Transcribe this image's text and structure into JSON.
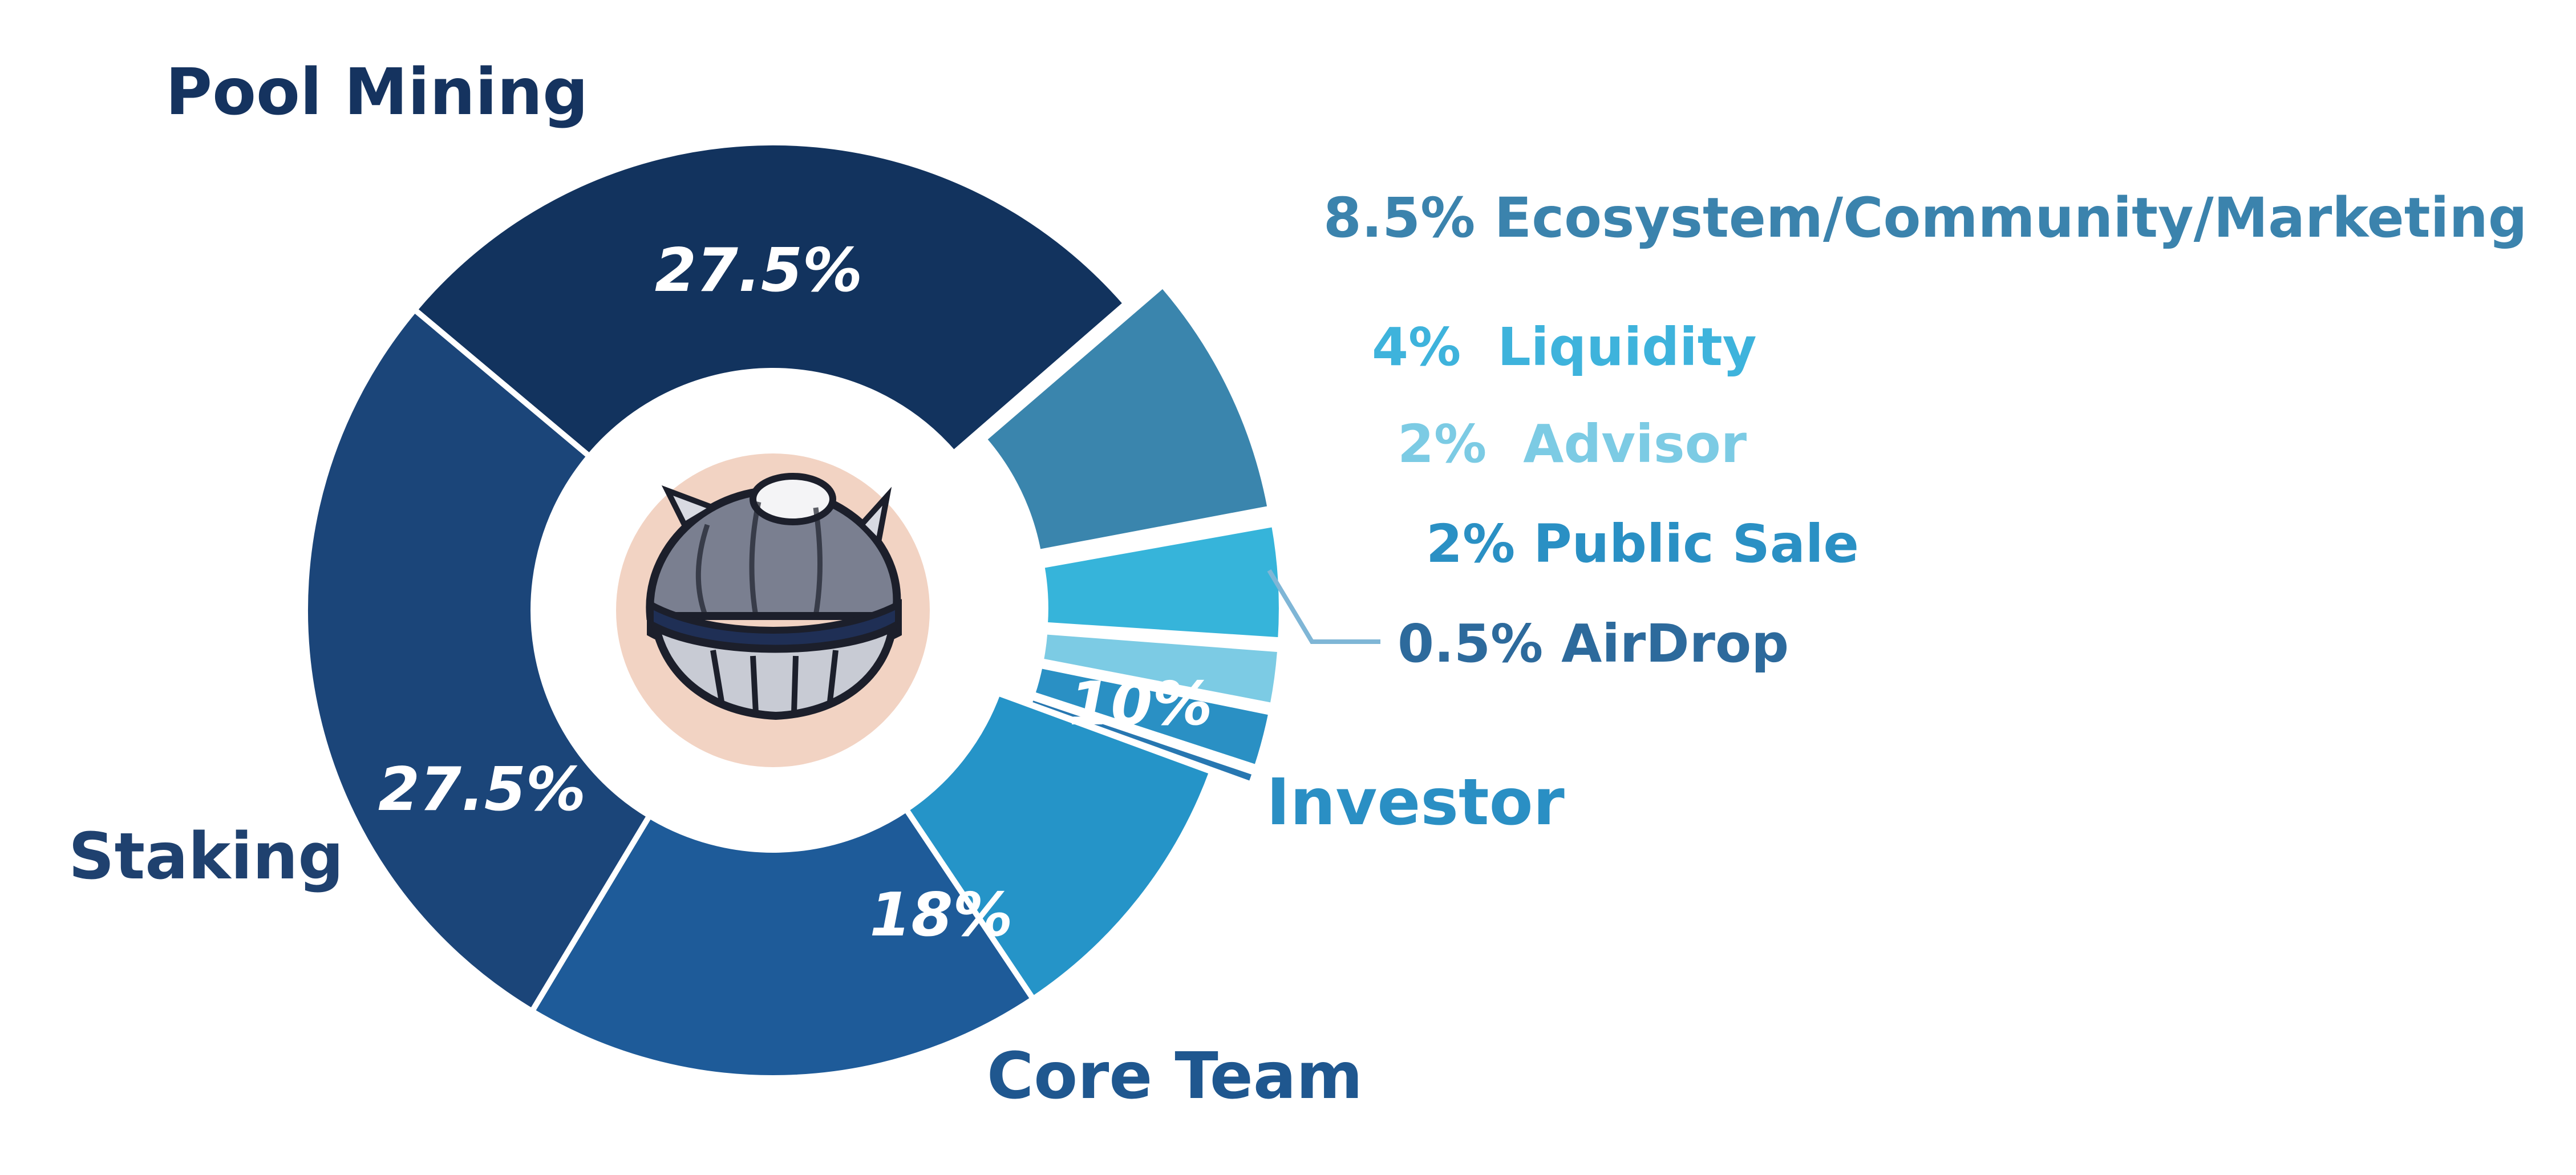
{
  "chart_data": {
    "type": "pie",
    "variant": "donut",
    "title": "",
    "slices": [
      {
        "name": "Pool Mining",
        "value": 27.5,
        "value_label": "27.5%",
        "color": "#12335e",
        "label_color": "#15335f"
      },
      {
        "name": "Ecosystem/Community/Marketing",
        "value": 8.5,
        "value_label": "8.5%",
        "color": "#3a85ad",
        "label_color": "#3b83ad",
        "exploded": true
      },
      {
        "name": "Liquidity",
        "value": 4,
        "value_label": "4%",
        "color": "#36b4da",
        "label_color": "#3eb3dc",
        "exploded": true
      },
      {
        "name": "Advisor",
        "value": 2,
        "value_label": "2%",
        "color": "#7ccbe4",
        "label_color": "#7ccbe4",
        "exploded": true
      },
      {
        "name": "Public Sale",
        "value": 2,
        "value_label": "2%",
        "color": "#2a90c4",
        "label_color": "#2a90c4",
        "exploded": true
      },
      {
        "name": "AirDrop",
        "value": 0.5,
        "value_label": "0.5%",
        "color": "#2777b1",
        "label_color": "#2d6a9c",
        "exploded": true
      },
      {
        "name": "Investor",
        "value": 10,
        "value_label": "10%",
        "color": "#2594c8",
        "label_color": "#2a8fc4"
      },
      {
        "name": "Core Team",
        "value": 18,
        "value_label": "18%",
        "color": "#1e5b99",
        "label_color": "#1f578f"
      },
      {
        "name": "Staking",
        "value": 27.5,
        "value_label": "27.5%",
        "color": "#1b4579",
        "label_color": "#1f416f"
      }
    ],
    "labels": {
      "pool_mining": "Pool Mining",
      "staking": "Staking",
      "core_team": "Core Team",
      "investor": "Investor",
      "ecosystem": "8.5% Ecosystem/Community/Marketing",
      "liquidity": "4%  Liquidity",
      "advisor": "2%  Advisor",
      "public_sale": "2% Public Sale",
      "airdrop": "0.5% AirDrop"
    },
    "center_icon": "clam-shell-icon",
    "legend": "labels-around-slices",
    "colors": {
      "center_circle": "#f2d3c3",
      "leader_line": "#7fb6d6"
    }
  }
}
